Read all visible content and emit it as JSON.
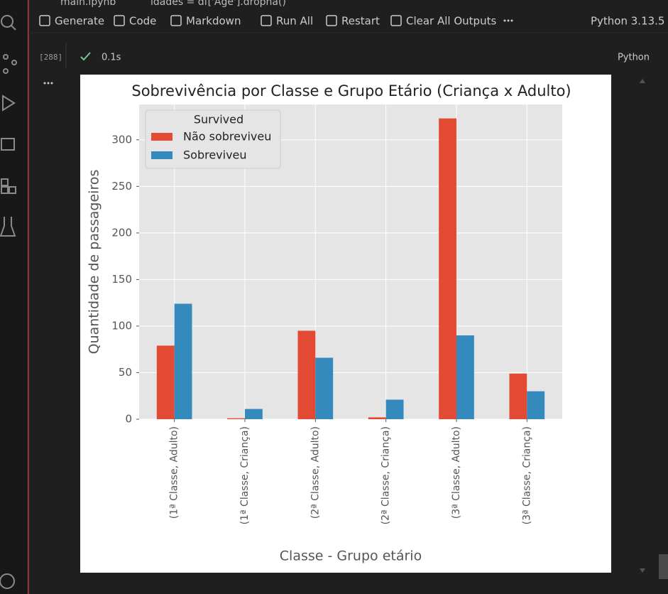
{
  "breadcrumb": {
    "file": "main.ipynb",
    "cell": "idades = df['Age'].dropna()"
  },
  "toolbar": {
    "items": [
      "Generate",
      "Code",
      "Markdown",
      "Run All",
      "Restart",
      "Clear All Outputs"
    ],
    "kernel": "Python 3.13.5"
  },
  "cell": {
    "execution_count": "[288]",
    "duration": "0.1s",
    "language": "Python"
  },
  "chart_data": {
    "type": "bar",
    "title": "Sobrevivência por Classe e Grupo Etário (Criança x Adulto)",
    "x_label": "Classe - Grupo etário",
    "y_label": "Quantidade de passageiros",
    "categories": [
      "(1ª Classe, Adulto)",
      "(1ª Classe, Criança)",
      "(2ª Classe, Adulto)",
      "(2ª Classe, Criança)",
      "(3ª Classe, Adulto)",
      "(3ª Classe, Criança)"
    ],
    "series": [
      {
        "name": "Não sobreviveu",
        "color": "#E24A33",
        "values": [
          79,
          1,
          95,
          2,
          323,
          49
        ]
      },
      {
        "name": "Sobreviveu",
        "color": "#348ABD",
        "values": [
          124,
          11,
          66,
          21,
          90,
          30
        ]
      }
    ],
    "legend_title": "Survived",
    "legend": "upper left",
    "ylim": [
      0,
      338
    ],
    "yticks": [
      0,
      50,
      100,
      150,
      200,
      250,
      300
    ],
    "grid": true
  }
}
